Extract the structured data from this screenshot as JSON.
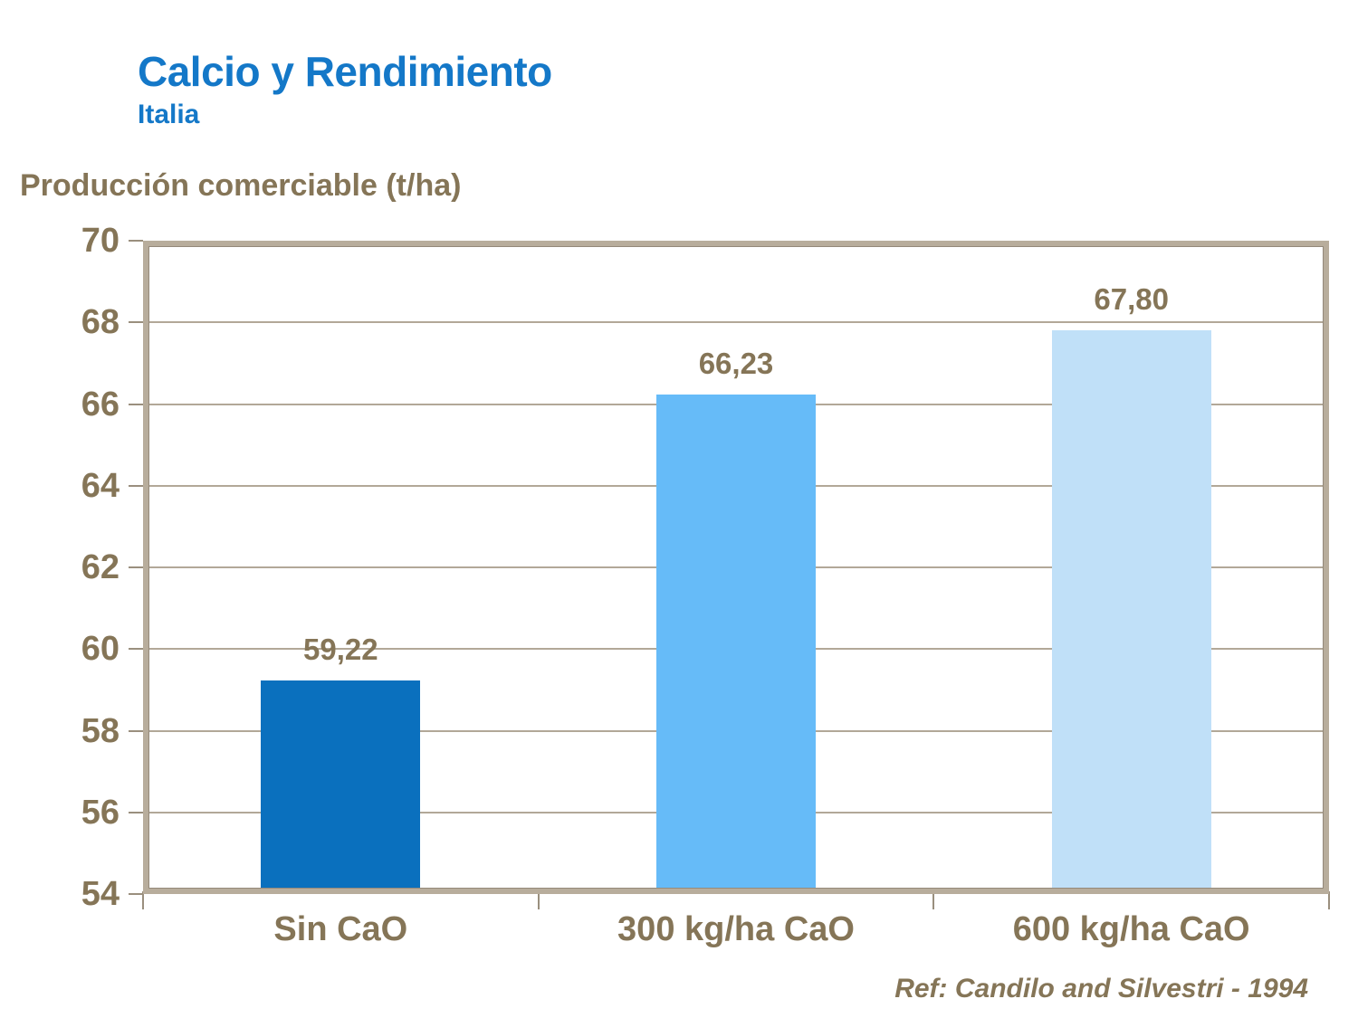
{
  "header": {
    "title": "Calcio y Rendimiento",
    "subtitle": "Italia"
  },
  "axis_title": "Producción comerciable (t/ha)",
  "footer": {
    "reference": "Ref: Candilo and Silvestri - 1994"
  },
  "colors": {
    "title_blue": "#1478c8",
    "label_brown": "#857557",
    "axis_frame": "#b8ad9c",
    "axis_frame_inner": "#94897a",
    "gridline": "#b2a898",
    "tick": "#9a8f7e",
    "bar_colors": [
      "#0a70be",
      "#66bbf8",
      "#c0e0f8"
    ]
  },
  "chart_data": {
    "type": "bar",
    "title": "Calcio y Rendimiento",
    "subtitle": "Italia",
    "categories": [
      "Sin CaO",
      "300 kg/ha CaO",
      "600 kg/ha CaO"
    ],
    "values": [
      59.22,
      66.23,
      67.8
    ],
    "value_labels": [
      "59,22",
      "66,23",
      "67,80"
    ],
    "ylabel": "Producción comerciable (t/ha)",
    "xlabel": "",
    "ylim": [
      54,
      70
    ],
    "ytick_step": 2,
    "ytick_labels": [
      "54",
      "56",
      "58",
      "60",
      "62",
      "64",
      "66",
      "68",
      "70"
    ],
    "grid": true,
    "legend": false,
    "reference": "Ref: Candilo and Silvestri - 1994"
  }
}
